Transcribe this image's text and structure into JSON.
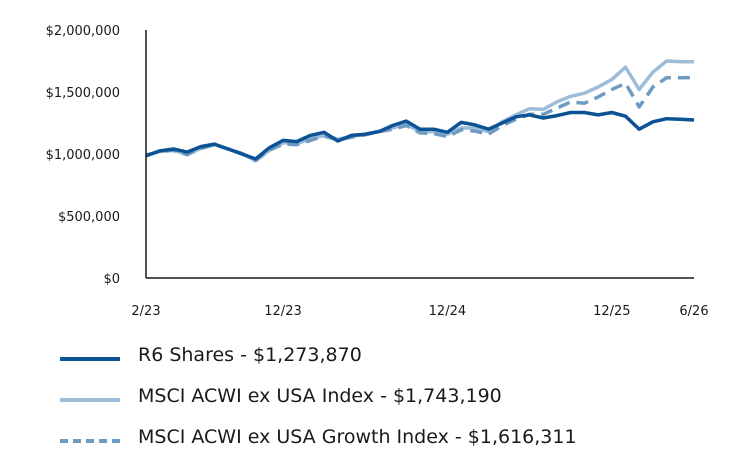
{
  "chart_data": {
    "type": "line",
    "title": "",
    "xlabel": "",
    "ylabel": "",
    "ylim": [
      0,
      2000000
    ],
    "y_ticks": [
      "$0",
      "$500,000",
      "$1,000,000",
      "$1,500,000",
      "$2,000,000"
    ],
    "y_tick_values": [
      0,
      500000,
      1000000,
      1500000,
      2000000
    ],
    "x_ticks": [
      "2/23",
      "12/23",
      "12/24",
      "12/25",
      "6/26"
    ],
    "x_tick_index": [
      0,
      10,
      22,
      34,
      40
    ],
    "x_count": 41,
    "grid": false,
    "legend_position": "bottom",
    "series": [
      {
        "name": "R6 Shares - $1,273,870",
        "color": "#0b5394",
        "style": "solid",
        "values": [
          985000,
          1025000,
          1040000,
          1015000,
          1060000,
          1080000,
          1040000,
          1000000,
          960000,
          1050000,
          1110000,
          1100000,
          1150000,
          1175000,
          1105000,
          1150000,
          1160000,
          1180000,
          1230000,
          1265000,
          1200000,
          1200000,
          1175000,
          1255000,
          1235000,
          1200000,
          1250000,
          1300000,
          1315000,
          1290000,
          1310000,
          1335000,
          1335000,
          1315000,
          1335000,
          1305000,
          1200000,
          1260000,
          1285000,
          1280000,
          1273870
        ]
      },
      {
        "name": "MSCI ACWI ex USA Index - $1,743,190",
        "color": "#9dbcd8",
        "style": "solid",
        "values": [
          990000,
          1020000,
          1030000,
          995000,
          1045000,
          1075000,
          1040000,
          1005000,
          945000,
          1030000,
          1090000,
          1085000,
          1120000,
          1150000,
          1120000,
          1140000,
          1160000,
          1185000,
          1210000,
          1240000,
          1180000,
          1180000,
          1160000,
          1210000,
          1210000,
          1180000,
          1260000,
          1315000,
          1365000,
          1360000,
          1420000,
          1465000,
          1490000,
          1540000,
          1600000,
          1700000,
          1520000,
          1660000,
          1750000,
          1745000,
          1743190
        ]
      },
      {
        "name": "MSCI ACWI ex USA Growth Index - $1,616,311",
        "color": "#6f9bc2",
        "style": "dashed",
        "values": [
          990000,
          1020000,
          1030000,
          995000,
          1045000,
          1075000,
          1040000,
          1005000,
          950000,
          1030000,
          1080000,
          1075000,
          1110000,
          1145000,
          1115000,
          1135000,
          1155000,
          1180000,
          1200000,
          1230000,
          1170000,
          1165000,
          1140000,
          1195000,
          1185000,
          1160000,
          1230000,
          1280000,
          1320000,
          1320000,
          1370000,
          1420000,
          1410000,
          1460000,
          1520000,
          1570000,
          1380000,
          1540000,
          1615000,
          1615000,
          1616311
        ]
      }
    ]
  }
}
